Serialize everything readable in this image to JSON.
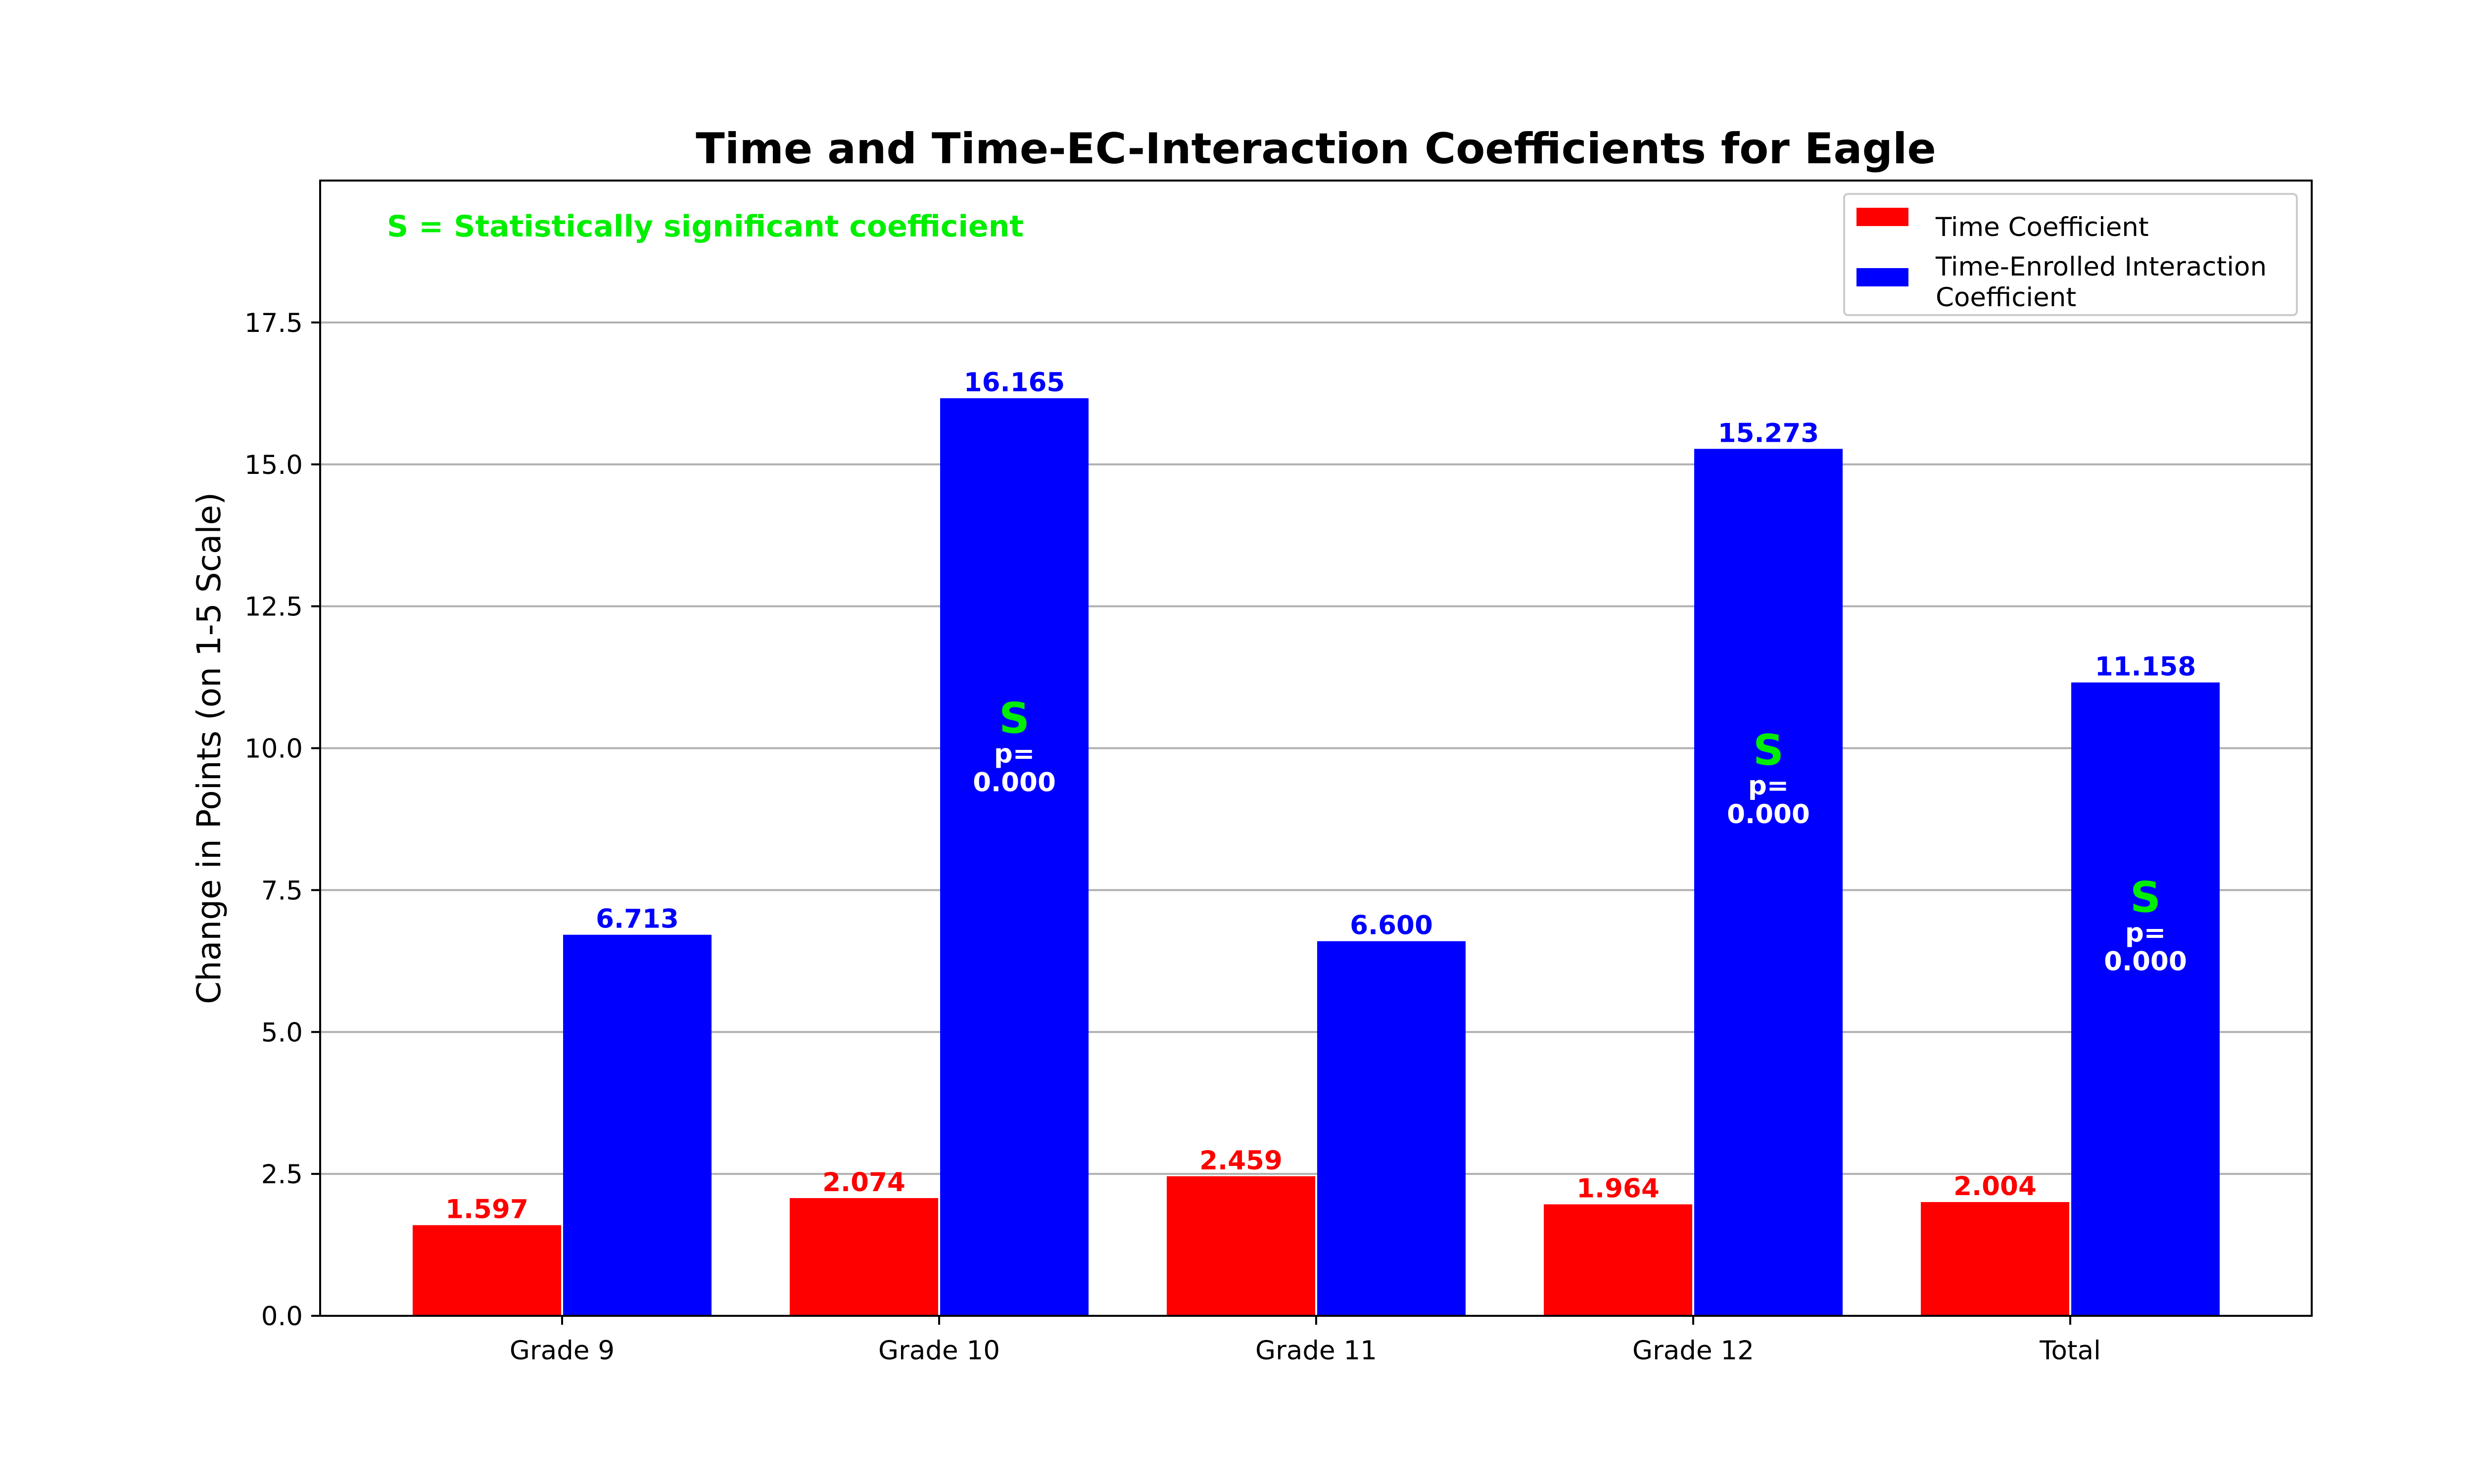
{
  "chart_data": {
    "type": "bar",
    "title": "Time and Time-EC-Interaction Coefficients for Eagle",
    "xlabel": "",
    "ylabel": "Change in Points (on 1-5 Scale)",
    "ylim": [
      0,
      20
    ],
    "yticks": [
      "0.0",
      "2.5",
      "5.0",
      "7.5",
      "10.0",
      "12.5",
      "15.0",
      "17.5"
    ],
    "grid": "horizontal",
    "legend_position": "top-right",
    "annotation": "S = Statistically significant coefficient",
    "significance_marker": "S",
    "categories": [
      "Grade 9",
      "Grade 10",
      "Grade 11",
      "Grade 12",
      "Total"
    ],
    "series": [
      {
        "name": "Time Coefficient",
        "color": "#ff0000",
        "values": [
          1.597,
          2.074,
          2.459,
          1.964,
          2.004
        ],
        "labels": [
          "1.597",
          "2.074",
          "2.459",
          "1.964",
          "2.004"
        ],
        "significance": [
          null,
          null,
          null,
          null,
          null
        ]
      },
      {
        "name": "Time-Enrolled Interaction\nCoefficient",
        "color": "#0000ff",
        "values": [
          6.713,
          16.165,
          6.6,
          15.273,
          11.158
        ],
        "labels": [
          "6.713",
          "16.165",
          "6.600",
          "15.273",
          "11.158"
        ],
        "significance": [
          null,
          "p=\n0.000",
          null,
          "p=\n0.000",
          "p=\n0.000"
        ]
      }
    ],
    "colors": {
      "significance_text": "#00ee00",
      "grid": "#b0b0b0"
    }
  }
}
